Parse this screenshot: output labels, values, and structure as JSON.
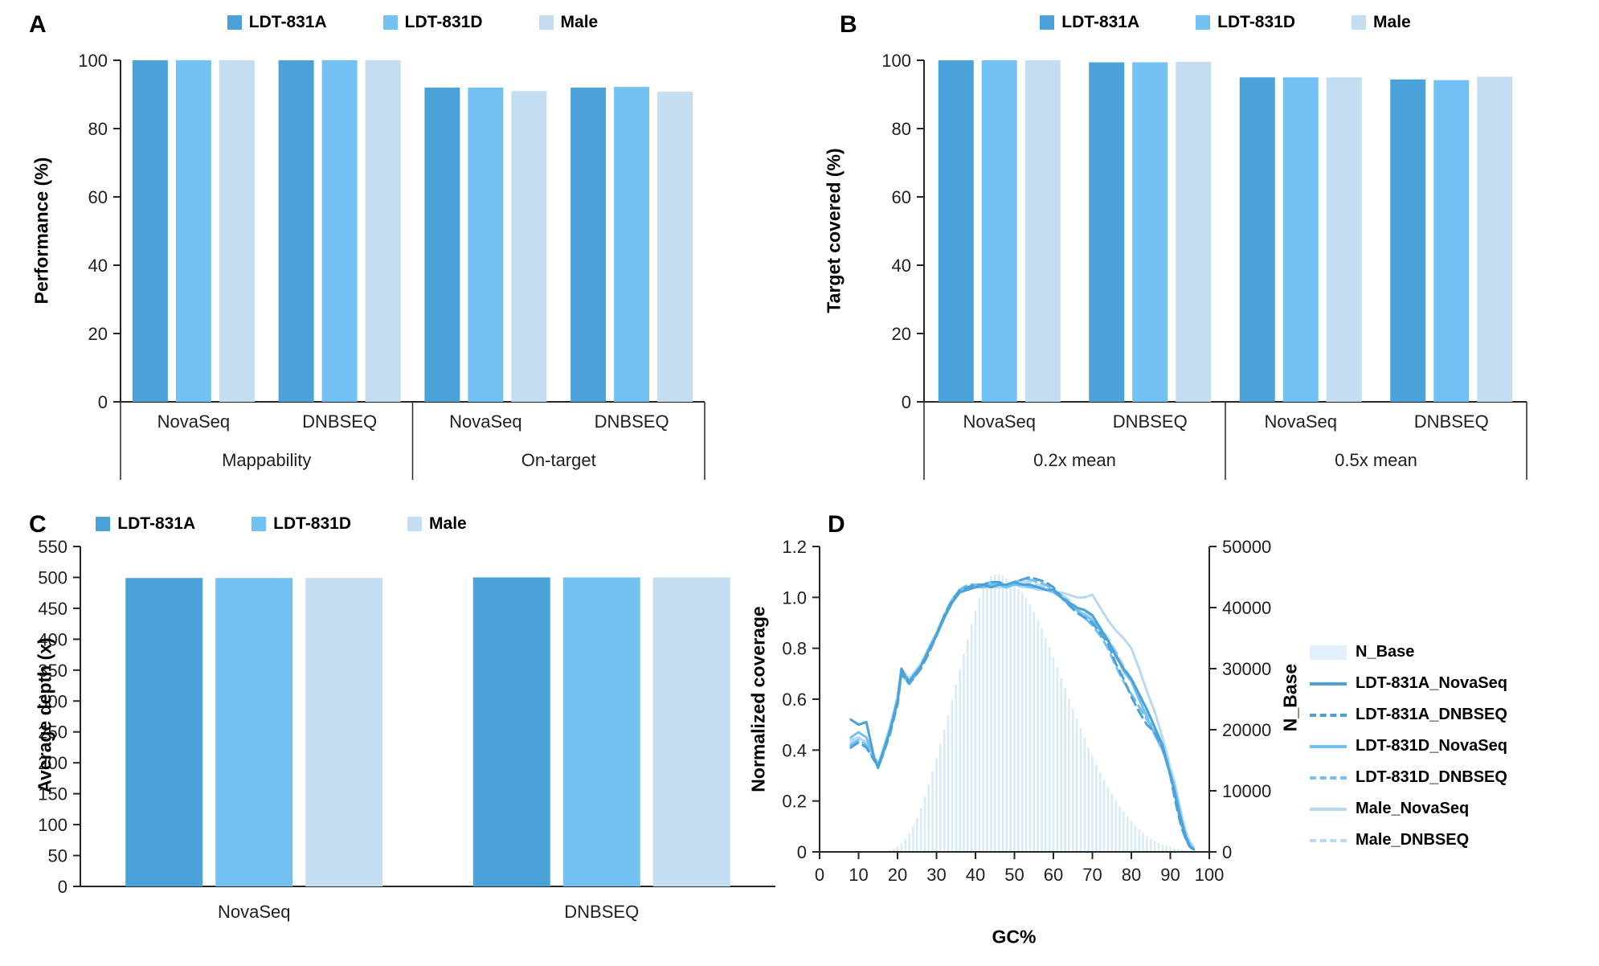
{
  "figure_background": "#ffffff",
  "axis_color": "#262626",
  "chart_data": [
    {
      "panel": "A",
      "type": "bar",
      "ylabel": "Performance (%)",
      "ylim": [
        0,
        100
      ],
      "yticks": [
        0,
        20,
        40,
        60,
        80,
        100
      ],
      "group_labels": [
        "Mappability",
        "On-target"
      ],
      "categories": [
        "NovaSeq",
        "DNBSEQ",
        "NovaSeq",
        "DNBSEQ"
      ],
      "legend_position": "top",
      "series": [
        {
          "name": "LDT-831A",
          "color": "#4aa2d9",
          "values": [
            100,
            100,
            92.0,
            92.0
          ]
        },
        {
          "name": "LDT-831D",
          "color": "#73c0f2",
          "values": [
            100,
            100,
            92.0,
            92.2
          ]
        },
        {
          "name": "Male",
          "color": "#c4ddf0",
          "values": [
            100,
            100,
            91.0,
            90.8
          ]
        }
      ]
    },
    {
      "panel": "B",
      "type": "bar",
      "ylabel": "Target covered (%)",
      "ylim": [
        0,
        100
      ],
      "yticks": [
        0,
        20,
        40,
        60,
        80,
        100
      ],
      "group_labels": [
        "0.2x mean",
        "0.5x mean"
      ],
      "categories": [
        "NovaSeq",
        "DNBSEQ",
        "NovaSeq",
        "DNBSEQ"
      ],
      "legend_position": "top",
      "series": [
        {
          "name": "LDT-831A",
          "color": "#4aa2d9",
          "values": [
            100,
            99.4,
            95.0,
            94.4
          ]
        },
        {
          "name": "LDT-831D",
          "color": "#73c0f2",
          "values": [
            100,
            99.4,
            95.0,
            94.2
          ]
        },
        {
          "name": "Male",
          "color": "#c4ddf0",
          "values": [
            100,
            99.5,
            95.0,
            95.2
          ]
        }
      ]
    },
    {
      "panel": "C",
      "type": "bar",
      "ylabel": "Average depth (x)",
      "ylim": [
        0,
        550
      ],
      "yticks": [
        0,
        50,
        100,
        150,
        200,
        250,
        300,
        350,
        400,
        450,
        500,
        550
      ],
      "categories": [
        "NovaSeq",
        "DNBSEQ"
      ],
      "legend_position": "top",
      "series": [
        {
          "name": "LDT-831A",
          "color": "#4aa2d9",
          "values": [
            499,
            500
          ]
        },
        {
          "name": "LDT-831D",
          "color": "#73c0f2",
          "values": [
            499,
            500
          ]
        },
        {
          "name": "Male",
          "color": "#c4ddf0",
          "values": [
            499,
            500
          ]
        }
      ]
    },
    {
      "panel": "D",
      "type": "line+histogram",
      "xlabel": "GC%",
      "ylabel_left": "Normalized coverage",
      "ylabel_right": "N_Base",
      "xlim": [
        0,
        100
      ],
      "xticks": [
        0,
        10,
        20,
        30,
        40,
        50,
        60,
        70,
        80,
        90,
        100
      ],
      "ylim_left": [
        0,
        1.2
      ],
      "yticks_left": [
        0,
        0.2,
        0.4,
        0.6,
        0.8,
        1.0,
        1.2
      ],
      "ylim_right": [
        0,
        50000
      ],
      "yticks_right": [
        0,
        10000,
        20000,
        30000,
        40000,
        50000
      ],
      "histogram": {
        "name": "N_Base",
        "color": "#d6eaf8",
        "swatch_color": "#e1f0fa",
        "x_start": 18,
        "x_step": 1,
        "values": [
          300,
          500,
          900,
          1400,
          2100,
          3000,
          4200,
          5600,
          7200,
          9000,
          11000,
          13200,
          15400,
          17700,
          20000,
          22400,
          24900,
          27400,
          29900,
          32400,
          34900,
          37300,
          39500,
          41500,
          43100,
          44300,
          45100,
          45500,
          45500,
          45200,
          44800,
          44300,
          43700,
          43100,
          42400,
          41500,
          40500,
          39300,
          38000,
          36600,
          35100,
          33500,
          31900,
          30200,
          28500,
          26800,
          25100,
          23400,
          21800,
          20200,
          18600,
          17100,
          15700,
          14300,
          13000,
          11800,
          10600,
          9500,
          8500,
          7500,
          6600,
          5800,
          5000,
          4300,
          3700,
          3100,
          2600,
          2200,
          1800,
          1500,
          1200,
          1000,
          800,
          620,
          480,
          360,
          270,
          200,
          140,
          100
        ]
      },
      "x": [
        8,
        10,
        12,
        14,
        15,
        16,
        18,
        20,
        21,
        22,
        23,
        24,
        26,
        28,
        30,
        32,
        34,
        36,
        38,
        40,
        42,
        44,
        46,
        48,
        50,
        52,
        54,
        56,
        58,
        60,
        62,
        64,
        66,
        68,
        70,
        72,
        74,
        76,
        78,
        80,
        82,
        84,
        86,
        88,
        90,
        91,
        92,
        93,
        94,
        95,
        96
      ],
      "series": [
        {
          "name": "LDT-831A_NovaSeq",
          "color": "#4aa2d9",
          "dash": "solid",
          "values": [
            0.52,
            0.5,
            0.51,
            0.37,
            0.33,
            0.38,
            0.47,
            0.59,
            0.72,
            0.69,
            0.67,
            0.69,
            0.73,
            0.79,
            0.85,
            0.92,
            0.98,
            1.02,
            1.03,
            1.04,
            1.05,
            1.04,
            1.05,
            1.05,
            1.06,
            1.05,
            1.05,
            1.04,
            1.03,
            1.03,
            1.0,
            0.98,
            0.96,
            0.95,
            0.93,
            0.88,
            0.83,
            0.77,
            0.72,
            0.68,
            0.62,
            0.56,
            0.49,
            0.42,
            0.3,
            0.24,
            0.17,
            0.11,
            0.06,
            0.02,
            0.01
          ]
        },
        {
          "name": "LDT-831A_DNBSEQ",
          "color": "#4aa2d9",
          "dash": "dashed",
          "values": [
            0.41,
            0.43,
            0.41,
            0.36,
            0.34,
            0.37,
            0.46,
            0.58,
            0.7,
            0.68,
            0.66,
            0.68,
            0.72,
            0.78,
            0.85,
            0.93,
            0.99,
            1.03,
            1.04,
            1.05,
            1.05,
            1.06,
            1.06,
            1.05,
            1.06,
            1.07,
            1.08,
            1.07,
            1.06,
            1.04,
            1.0,
            0.97,
            0.94,
            0.92,
            0.9,
            0.86,
            0.82,
            0.74,
            0.68,
            0.61,
            0.55,
            0.5,
            0.47,
            0.41,
            0.3,
            0.22,
            0.15,
            0.09,
            0.05,
            0.02,
            0.01
          ]
        },
        {
          "name": "LDT-831D_NovaSeq",
          "color": "#73c0f2",
          "dash": "solid",
          "values": [
            0.45,
            0.47,
            0.45,
            0.37,
            0.34,
            0.38,
            0.48,
            0.6,
            0.71,
            0.68,
            0.67,
            0.69,
            0.73,
            0.8,
            0.86,
            0.92,
            0.98,
            1.02,
            1.04,
            1.04,
            1.04,
            1.05,
            1.05,
            1.04,
            1.05,
            1.05,
            1.04,
            1.04,
            1.03,
            1.02,
            1.0,
            0.97,
            0.95,
            0.93,
            0.91,
            0.87,
            0.83,
            0.78,
            0.71,
            0.67,
            0.6,
            0.53,
            0.46,
            0.4,
            0.31,
            0.26,
            0.19,
            0.12,
            0.06,
            0.03,
            0.01
          ]
        },
        {
          "name": "LDT-831D_DNBSEQ",
          "color": "#73c0f2",
          "dash": "dashed",
          "values": [
            0.42,
            0.44,
            0.42,
            0.36,
            0.33,
            0.37,
            0.47,
            0.59,
            0.7,
            0.68,
            0.66,
            0.68,
            0.73,
            0.79,
            0.86,
            0.93,
            0.99,
            1.03,
            1.05,
            1.05,
            1.05,
            1.06,
            1.05,
            1.05,
            1.06,
            1.07,
            1.07,
            1.06,
            1.05,
            1.03,
            1.01,
            0.98,
            0.95,
            0.92,
            0.89,
            0.85,
            0.8,
            0.73,
            0.67,
            0.62,
            0.57,
            0.52,
            0.48,
            0.42,
            0.31,
            0.24,
            0.16,
            0.1,
            0.05,
            0.02,
            0.01
          ]
        },
        {
          "name": "Male_NovaSeq",
          "color": "#b7d9f3",
          "dash": "solid",
          "values": [
            0.44,
            0.45,
            0.43,
            0.37,
            0.35,
            0.39,
            0.49,
            0.61,
            0.72,
            0.7,
            0.68,
            0.7,
            0.74,
            0.8,
            0.86,
            0.93,
            0.99,
            1.02,
            1.03,
            1.04,
            1.04,
            1.04,
            1.04,
            1.04,
            1.05,
            1.04,
            1.04,
            1.03,
            1.03,
            1.02,
            1.02,
            1.01,
            1.0,
            1.0,
            1.01,
            0.96,
            0.91,
            0.87,
            0.84,
            0.8,
            0.72,
            0.63,
            0.55,
            0.45,
            0.33,
            0.28,
            0.21,
            0.14,
            0.08,
            0.04,
            0.02
          ]
        },
        {
          "name": "Male_DNBSEQ",
          "color": "#b7d9f3",
          "dash": "dashed",
          "values": [
            0.43,
            0.44,
            0.42,
            0.36,
            0.34,
            0.38,
            0.48,
            0.6,
            0.71,
            0.69,
            0.67,
            0.69,
            0.73,
            0.79,
            0.85,
            0.92,
            0.98,
            1.02,
            1.04,
            1.04,
            1.05,
            1.05,
            1.05,
            1.05,
            1.05,
            1.06,
            1.06,
            1.05,
            1.04,
            1.03,
            1.01,
            0.99,
            0.96,
            0.94,
            0.92,
            0.88,
            0.84,
            0.79,
            0.73,
            0.68,
            0.61,
            0.54,
            0.47,
            0.41,
            0.32,
            0.26,
            0.18,
            0.11,
            0.05,
            0.02,
            0.01
          ]
        }
      ]
    }
  ]
}
